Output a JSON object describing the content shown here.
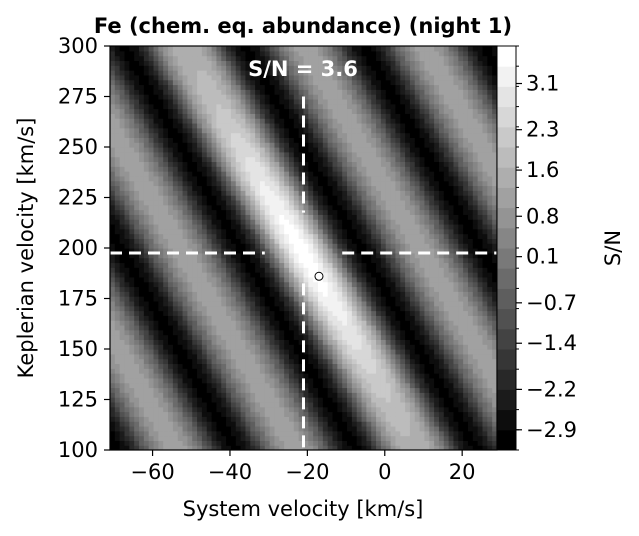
{
  "chart_data": {
    "type": "heatmap",
    "title": "Fe (chem. eq. abundance) (night 1)",
    "xlabel": "System velocity [km/s]",
    "ylabel": "Keplerian velocity [km/s]",
    "colorbar_label": "S/N",
    "xlim": [
      -71,
      29
    ],
    "ylim": [
      100,
      300
    ],
    "xticks": [
      -60,
      -40,
      -20,
      0,
      20
    ],
    "xtick_labels": [
      "−60",
      "−40",
      "−20",
      "0",
      "20"
    ],
    "yticks": [
      100,
      125,
      150,
      175,
      200,
      225,
      250,
      275,
      300
    ],
    "ytick_labels": [
      "100",
      "125",
      "150",
      "175",
      "200",
      "225",
      "250",
      "275",
      "300"
    ],
    "colorbar_range": [
      -3.25,
      3.75
    ],
    "colorbar_ticks": [
      -2.9,
      -2.2,
      -1.4,
      -0.7,
      0.1,
      0.8,
      1.6,
      2.3,
      3.1
    ],
    "colorbar_tick_labels": [
      "−2.9",
      "−2.2",
      "−1.4",
      "−0.7",
      "0.1",
      "0.8",
      "1.6",
      "2.3",
      "3.1"
    ],
    "colormap": "gray",
    "peak_annotation": "S/N = 3.6",
    "crosshair": {
      "x": -21,
      "y": 197.5
    },
    "marker": {
      "x": -17,
      "y": 186
    },
    "ridge": {
      "direction_dx_per_dy": -0.3,
      "peak_value": 3.6,
      "secondary_peak_value": 1.2,
      "trough_value": -3.0,
      "period_km_s": 31,
      "background_value": -0.6
    },
    "colors": {
      "line": "#ffffff",
      "text": "#000000",
      "annotation": "#ffffff"
    }
  }
}
